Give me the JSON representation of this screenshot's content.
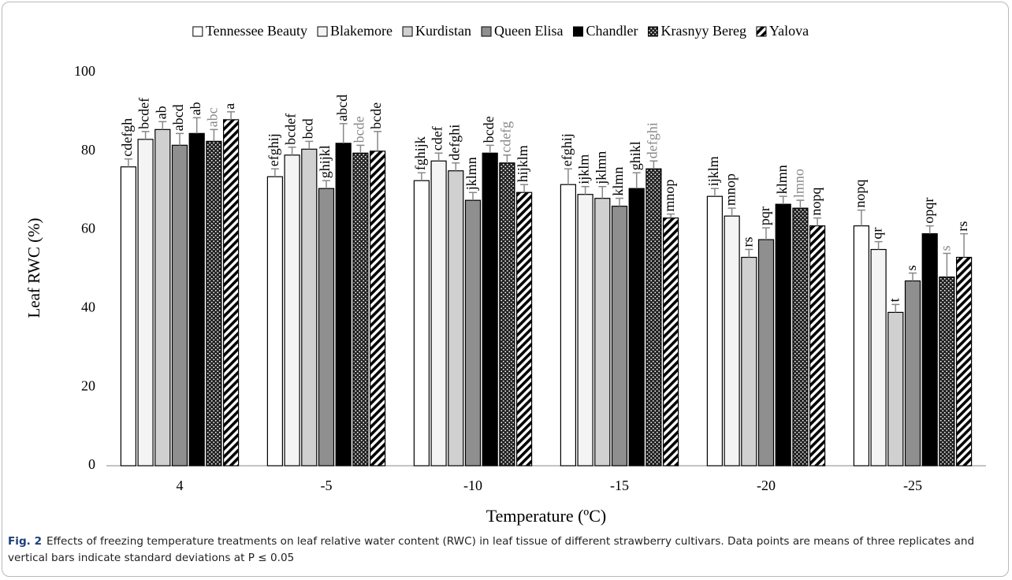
{
  "chart_data": {
    "type": "bar",
    "ylabel": "Leaf  RWC (%)",
    "xlabel": "Temperature (ºC)",
    "categories": [
      "4",
      "-5",
      "-10",
      "-15",
      "-20",
      "-25"
    ],
    "ylim": [
      0,
      100
    ],
    "yticks": [
      0,
      20,
      40,
      60,
      80,
      100
    ],
    "grid": false,
    "legend": "top",
    "series": [
      {
        "name": "Tennessee Beauty",
        "color": "#ffffff",
        "letter_color": "#000000",
        "values": [
          76,
          73.5,
          72.5,
          71.5,
          68.5,
          61
        ],
        "errors": [
          2,
          2,
          2,
          4,
          2,
          4
        ],
        "letters": [
          "cdefgh",
          "efghij",
          "fghijk",
          "efghij",
          "ijklm",
          "nopq"
        ]
      },
      {
        "name": "Blakemore",
        "color": "#f4f4f4",
        "letter_color": "#000000",
        "values": [
          83,
          79,
          77.5,
          69,
          63.5,
          55
        ],
        "errors": [
          2,
          2,
          2,
          2,
          2,
          2
        ],
        "letters": [
          "bcdef",
          "bcdef",
          "cdef",
          "ijklm",
          "mnop",
          "qr"
        ]
      },
      {
        "name": "Kurdistan",
        "color": "#d0d0d0",
        "letter_color": "#000000",
        "values": [
          85.5,
          80.5,
          75,
          68,
          53,
          39
        ],
        "errors": [
          2,
          2,
          2,
          3,
          2,
          2
        ],
        "letters": [
          "ab",
          "bcd",
          "defghi",
          "jklmn",
          "rs",
          "t"
        ]
      },
      {
        "name": "Queen Elisa",
        "color": "#8f8f8f",
        "letter_color": "#000000",
        "values": [
          81.5,
          70.5,
          67.5,
          66,
          57.5,
          47
        ],
        "errors": [
          3,
          2,
          2,
          2,
          3,
          2
        ],
        "letters": [
          "abcd",
          "ghijkl",
          "jklmn",
          "klmn",
          "pqr",
          "s"
        ]
      },
      {
        "name": "Chandler",
        "color": "#000000",
        "letter_color": "#000000",
        "values": [
          84.5,
          82,
          79.5,
          70.5,
          66.5,
          59
        ],
        "errors": [
          4,
          5,
          2,
          4,
          2,
          2
        ],
        "letters": [
          "ab",
          "abcd",
          "bcde",
          "ghikl",
          "klmn",
          "opqr"
        ]
      },
      {
        "name": "Krasnyy Bereg",
        "color": "#2a2a2a",
        "pattern": "dots",
        "letter_color": "#888888",
        "values": [
          82.5,
          79.5,
          77,
          75.5,
          65.5,
          48
        ],
        "errors": [
          3,
          2,
          2,
          2,
          2,
          6
        ],
        "letters": [
          "abc",
          "bcde",
          "cdefg",
          "defghi",
          "lmno",
          "s"
        ]
      },
      {
        "name": "Yalova",
        "color": "#000000",
        "pattern": "stripes",
        "letter_color": "#000000",
        "values": [
          88,
          80,
          69.5,
          63,
          61,
          53
        ],
        "errors": [
          2,
          5,
          2,
          1,
          2,
          6
        ],
        "letters": [
          "a",
          "bcde",
          "hijklm",
          "mnop",
          "nopq",
          "rs"
        ]
      }
    ]
  },
  "caption": {
    "label": "Fig. 2",
    "text": "Effects of freezing temperature treatments on leaf relative water content (RWC) in leaf tissue of different strawberry cultivars. Data points are means of three replicates and vertical bars indicate standard deviations at P ≤ 0.05"
  }
}
